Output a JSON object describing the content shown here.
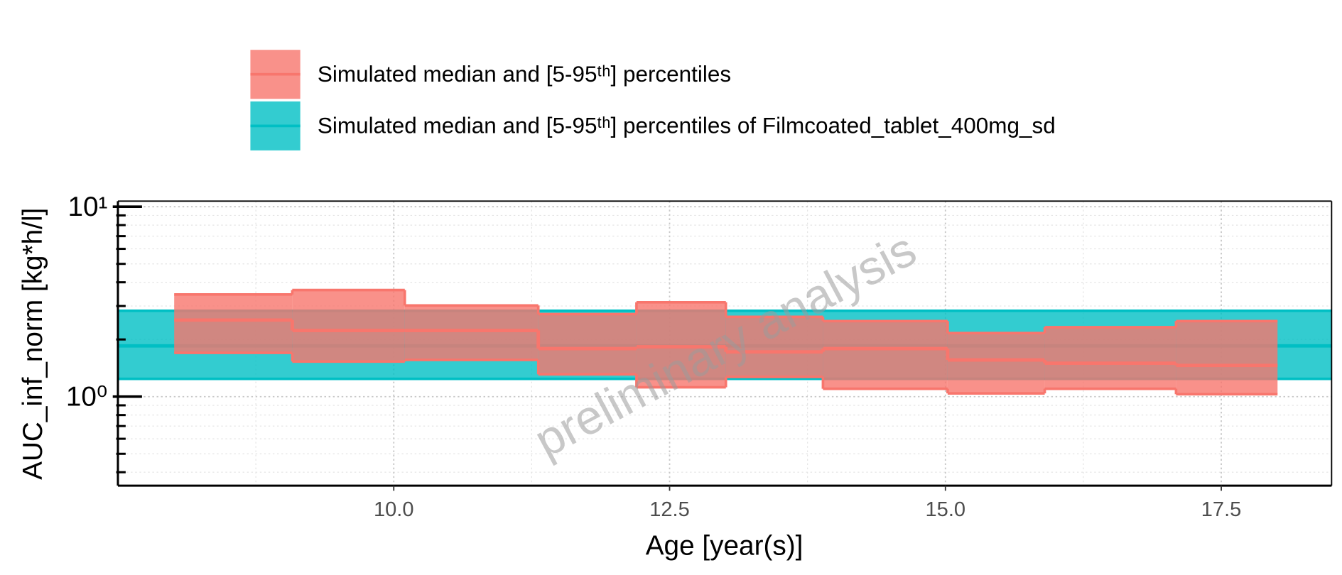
{
  "chart_data": {
    "type": "band",
    "xlabel": "Age [year(s)]",
    "ylabel": "AUC_inf_norm [kg*h/l]",
    "watermark": "preliminary analysis",
    "log_y": true,
    "grid": true,
    "xlim": [
      7.5,
      18.5
    ],
    "ylim": [
      0.34,
      10.7
    ],
    "xticks": [
      {
        "value": 10,
        "label": "10.0"
      },
      {
        "value": 12.5,
        "label": "12.5"
      },
      {
        "value": 15,
        "label": "15.0"
      },
      {
        "value": 17.5,
        "label": "17.5"
      }
    ],
    "xminorticks": [
      8.75,
      11.25,
      13.75,
      16.25
    ],
    "yticks": [
      {
        "value": 1,
        "label": "10⁰"
      },
      {
        "value": 10,
        "label": "10¹"
      }
    ],
    "yminorticks": [
      0.4,
      0.5,
      0.6,
      0.7,
      0.8,
      0.9,
      2,
      3,
      4,
      5,
      6,
      7,
      8,
      9
    ],
    "bins": [
      8.01,
      9.08,
      10.1,
      11.31,
      12.2,
      13.01,
      13.89,
      15.02,
      15.9,
      17.09,
      18.01
    ],
    "series": [
      {
        "name": "Simulated median and [5-95ᵗʰ] percentiles",
        "color": "#F8766D",
        "median": [
          2.53,
          2.23,
          2.23,
          1.79,
          1.83,
          1.72,
          1.79,
          1.56,
          1.5,
          1.46
        ],
        "lower": [
          1.7,
          1.53,
          1.56,
          1.31,
          1.12,
          1.27,
          1.1,
          1.04,
          1.1,
          1.03
        ],
        "upper": [
          3.45,
          3.64,
          3.02,
          2.72,
          3.14,
          2.63,
          2.5,
          2.16,
          2.32,
          2.5
        ]
      }
    ],
    "reference": {
      "name": "Simulated median and [5-95ᵗʰ] percentiles of Filmcoated_tablet_400mg_sd",
      "color": "#00BFC4",
      "median": 1.85,
      "lower": 1.24,
      "upper": 2.83
    }
  }
}
